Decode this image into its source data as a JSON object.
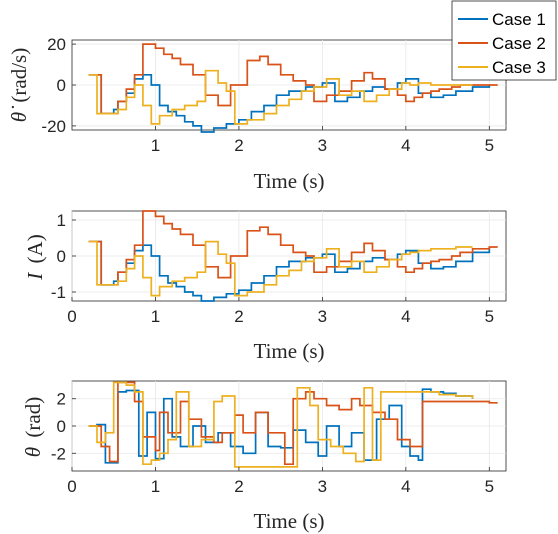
{
  "colors": {
    "case1": "#0072bd",
    "case2": "#d95319",
    "case3": "#edb120"
  },
  "chart_data": [
    {
      "type": "line",
      "id": "omega",
      "xlabel": "Time (s)",
      "ylabel_symbol": "θ̇",
      "ylabel_unit": "(rad/s)",
      "xlim": [
        0,
        5.2
      ],
      "ylim": [
        -22,
        22
      ],
      "xticks": [
        1,
        2,
        3,
        4,
        5
      ],
      "yticks": [
        20,
        0,
        -20
      ],
      "legend": {
        "placement": "top-right",
        "entries": [
          "Case 1",
          "Case 2",
          "Case 3"
        ]
      },
      "series": [
        {
          "name": "Case 1",
          "color_key": "case1",
          "x": [
            0.2,
            0.35,
            0.4,
            0.5,
            0.55,
            0.65,
            0.75,
            0.85,
            0.95,
            1.05,
            1.15,
            1.25,
            1.35,
            1.45,
            1.55,
            1.7,
            1.85,
            2.0,
            2.15,
            2.3,
            2.45,
            2.6,
            2.8,
            3.0,
            3.15,
            3.3,
            3.45,
            3.6,
            3.75,
            3.9,
            4.0,
            4.15,
            4.3,
            4.45,
            4.6,
            4.8,
            5.0
          ],
          "y": [
            5,
            -14,
            -14,
            -12,
            -8,
            -4,
            3,
            5,
            0,
            -10,
            -13,
            -15,
            -18,
            -20,
            -23,
            -21,
            -19,
            -17,
            -13,
            -10,
            -5,
            -3,
            -1,
            1,
            -8,
            -6,
            -3,
            -1,
            -2,
            1,
            3,
            -4,
            -6,
            -5,
            -3,
            -1,
            0
          ]
        },
        {
          "name": "Case 2",
          "color_key": "case2",
          "x": [
            0.2,
            0.35,
            0.45,
            0.55,
            0.65,
            0.75,
            0.85,
            1.0,
            1.1,
            1.2,
            1.3,
            1.45,
            1.6,
            1.75,
            1.9,
            2.1,
            2.25,
            2.35,
            2.5,
            2.65,
            2.8,
            2.9,
            3.05,
            3.2,
            3.35,
            3.5,
            3.6,
            3.75,
            3.9,
            4.0,
            4.1,
            4.2,
            4.3,
            4.4,
            4.55,
            4.65,
            4.8,
            5.0,
            5.1
          ],
          "y": [
            5,
            -14,
            -14,
            -8,
            -2,
            5,
            20,
            18,
            15,
            13,
            10,
            5,
            -5,
            -10,
            0,
            12,
            14,
            10,
            5,
            2,
            0,
            -8,
            -5,
            -3,
            2,
            6,
            3,
            -2,
            -5,
            -8,
            -6,
            -4,
            -3,
            -2,
            -1,
            0,
            0,
            0,
            0
          ]
        },
        {
          "name": "Case 3",
          "color_key": "case3",
          "x": [
            0.2,
            0.3,
            0.45,
            0.55,
            0.65,
            0.75,
            0.85,
            0.95,
            1.05,
            1.2,
            1.35,
            1.5,
            1.6,
            1.75,
            1.85,
            1.95,
            2.1,
            2.3,
            2.45,
            2.6,
            2.75,
            2.9,
            3.05,
            3.2,
            3.35,
            3.5,
            3.65,
            3.8,
            3.95,
            4.05,
            4.15,
            4.3,
            4.45,
            4.6,
            4.8
          ],
          "y": [
            5,
            -14,
            -14,
            -12,
            -6,
            0,
            -10,
            -19,
            -15,
            -12,
            -10,
            -8,
            7,
            1,
            -3,
            -19,
            -17,
            -14,
            -10,
            -7,
            -3,
            -1,
            3,
            -5,
            -3,
            -8,
            -5,
            -2,
            1,
            0,
            1,
            0,
            0,
            0,
            0
          ]
        }
      ]
    },
    {
      "type": "line",
      "id": "current",
      "xlabel": "Time (s)",
      "ylabel_symbol": "I",
      "ylabel_unit": "(A)",
      "xlim": [
        0,
        5.2
      ],
      "ylim": [
        -1.25,
        1.25
      ],
      "xticks": [
        0,
        1,
        2,
        3,
        4,
        5
      ],
      "yticks": [
        1,
        0,
        -1
      ],
      "series": [
        {
          "name": "Case 1",
          "color_key": "case1",
          "x": [
            0.2,
            0.35,
            0.4,
            0.5,
            0.55,
            0.65,
            0.75,
            0.85,
            0.95,
            1.05,
            1.15,
            1.25,
            1.35,
            1.45,
            1.55,
            1.7,
            1.85,
            2.0,
            2.15,
            2.3,
            2.45,
            2.6,
            2.8,
            3.0,
            3.15,
            3.3,
            3.45,
            3.6,
            3.75,
            3.9,
            4.0,
            4.15,
            4.3,
            4.45,
            4.6,
            4.8,
            5.0
          ],
          "y": [
            0.4,
            -0.8,
            -0.8,
            -0.7,
            -0.45,
            -0.2,
            0.15,
            0.3,
            0,
            -0.55,
            -0.75,
            -0.85,
            -1.0,
            -1.1,
            -1.25,
            -1.15,
            -1.05,
            -0.95,
            -0.75,
            -0.55,
            -0.3,
            -0.15,
            -0.05,
            0.05,
            -0.45,
            -0.35,
            -0.15,
            -0.05,
            -0.1,
            0.05,
            0.15,
            -0.2,
            -0.35,
            -0.3,
            -0.15,
            0.1,
            0.25
          ]
        },
        {
          "name": "Case 2",
          "color_key": "case2",
          "x": [
            0.2,
            0.35,
            0.45,
            0.55,
            0.65,
            0.75,
            0.85,
            1.0,
            1.1,
            1.2,
            1.3,
            1.45,
            1.6,
            1.75,
            1.9,
            2.1,
            2.25,
            2.35,
            2.5,
            2.65,
            2.8,
            2.9,
            3.05,
            3.2,
            3.35,
            3.5,
            3.6,
            3.75,
            3.9,
            4.0,
            4.1,
            4.2,
            4.3,
            4.4,
            4.55,
            4.65,
            4.8,
            5.0,
            5.1
          ],
          "y": [
            0.4,
            -0.8,
            -0.8,
            -0.45,
            -0.1,
            0.3,
            1.25,
            1.1,
            0.9,
            0.75,
            0.6,
            0.3,
            -0.3,
            -0.6,
            0,
            0.7,
            0.8,
            0.6,
            0.3,
            0.1,
            0,
            -0.45,
            -0.3,
            -0.15,
            0.1,
            0.35,
            0.15,
            -0.1,
            -0.3,
            -0.45,
            -0.35,
            -0.2,
            -0.15,
            -0.1,
            0,
            0.1,
            0.2,
            0.25,
            0.25
          ]
        },
        {
          "name": "Case 3",
          "color_key": "case3",
          "x": [
            0.2,
            0.3,
            0.45,
            0.55,
            0.65,
            0.75,
            0.85,
            0.95,
            1.05,
            1.2,
            1.35,
            1.5,
            1.6,
            1.75,
            1.85,
            1.95,
            2.1,
            2.3,
            2.45,
            2.6,
            2.75,
            2.9,
            3.05,
            3.2,
            3.35,
            3.5,
            3.65,
            3.8,
            3.95,
            4.05,
            4.15,
            4.3,
            4.45,
            4.6,
            4.8
          ],
          "y": [
            0.4,
            -0.8,
            -0.8,
            -0.7,
            -0.35,
            0,
            -0.6,
            -1.1,
            -0.85,
            -0.7,
            -0.6,
            -0.45,
            0.4,
            0.05,
            -0.2,
            -1.1,
            -1.0,
            -0.8,
            -0.55,
            -0.4,
            -0.15,
            -0.05,
            0.2,
            -0.3,
            -0.15,
            -0.45,
            -0.3,
            -0.1,
            0.05,
            0.1,
            0.15,
            0.2,
            0.2,
            0.25,
            0.25
          ]
        }
      ]
    },
    {
      "type": "line",
      "id": "theta",
      "xlabel": "Time (s)",
      "ylabel_symbol": "θ",
      "ylabel_unit": "(rad)",
      "xlim": [
        0,
        5.2
      ],
      "ylim": [
        -3.3,
        3.3
      ],
      "xticks": [
        0,
        1,
        2,
        3,
        4,
        5
      ],
      "yticks": [
        2,
        0,
        -2
      ],
      "series": [
        {
          "name": "Case 1",
          "color_key": "case1",
          "x": [
            0.2,
            0.3,
            0.4,
            0.55,
            0.65,
            0.8,
            0.9,
            1.0,
            1.1,
            1.2,
            1.3,
            1.45,
            1.6,
            1.75,
            1.9,
            2.05,
            2.2,
            2.35,
            2.5,
            2.65,
            2.8,
            2.95,
            3.05,
            3.2,
            3.35,
            3.5,
            3.65,
            3.8,
            3.95,
            4.05,
            4.15,
            4.2,
            4.3,
            4.45,
            4.6,
            4.8
          ],
          "y": [
            0,
            0.1,
            -2.7,
            2.5,
            2.6,
            -2.2,
            1.0,
            -2.4,
            2.0,
            -0.8,
            -1.5,
            0.0,
            -1.2,
            -0.5,
            -1.5,
            -2.0,
            1.0,
            -1.5,
            -1.6,
            -0.3,
            -1.2,
            -2.2,
            0.0,
            -1.5,
            -0.5,
            -2.5,
            0.5,
            1.5,
            -1.5,
            -2.2,
            -2.5,
            2.7,
            2.5,
            2.4,
            2.2,
            2.0
          ]
        },
        {
          "name": "Case 2",
          "color_key": "case2",
          "x": [
            0.2,
            0.35,
            0.45,
            0.55,
            0.75,
            0.85,
            1.0,
            1.05,
            1.15,
            1.3,
            1.4,
            1.55,
            1.7,
            1.8,
            1.95,
            2.05,
            2.2,
            2.35,
            2.55,
            2.65,
            2.8,
            2.9,
            3.05,
            3.2,
            3.35,
            3.45,
            3.6,
            3.75,
            3.9,
            4.05,
            4.2,
            4.4,
            4.6,
            4.8,
            5.0,
            5.1
          ],
          "y": [
            0,
            -1.5,
            -2.6,
            3.2,
            1.8,
            -0.8,
            -1.8,
            1.0,
            -0.5,
            1.8,
            0.5,
            -0.8,
            -1.2,
            -0.5,
            0.8,
            -0.5,
            1.0,
            -0.5,
            -2.8,
            2.0,
            2.5,
            2.0,
            1.5,
            1.2,
            2.0,
            1.5,
            1.0,
            0.5,
            -1.0,
            -1.5,
            1.8,
            1.8,
            1.8,
            1.8,
            1.7,
            1.7
          ]
        },
        {
          "name": "Case 3",
          "color_key": "case3",
          "x": [
            0.2,
            0.3,
            0.4,
            0.5,
            0.65,
            0.75,
            0.85,
            0.95,
            1.05,
            1.15,
            1.25,
            1.4,
            1.55,
            1.7,
            1.8,
            1.95,
            2.1,
            2.25,
            2.4,
            2.55,
            2.7,
            2.85,
            2.95,
            3.1,
            3.25,
            3.4,
            3.5,
            3.6,
            3.7,
            3.8,
            4.0,
            4.2,
            4.4,
            4.6,
            4.8
          ],
          "y": [
            0,
            -1.2,
            -0.5,
            3.2,
            3.0,
            2.5,
            -2.8,
            -2.5,
            -2.0,
            -1.0,
            2.5,
            -1.5,
            -1.0,
            1.8,
            2.2,
            -3.0,
            -3.0,
            -3.0,
            -3.0,
            -3.0,
            2.8,
            1.5,
            -1.0,
            -1.5,
            -2.0,
            -2.6,
            2.8,
            -2.5,
            2.5,
            2.5,
            2.5,
            2.5,
            2.3,
            2.2,
            2.0
          ]
        }
      ]
    }
  ]
}
